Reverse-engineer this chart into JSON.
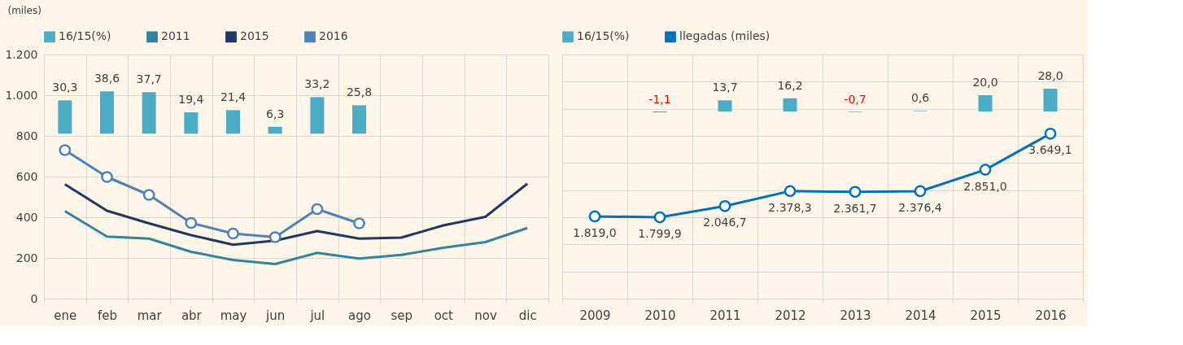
{
  "chart_data": [
    {
      "type": "line",
      "ylabel": "(miles)",
      "categories": [
        "ene",
        "feb",
        "mar",
        "abr",
        "may",
        "jun",
        "jul",
        "ago",
        "sep",
        "oct",
        "nov",
        "dic"
      ],
      "ylim": [
        0,
        1200
      ],
      "yticks": [
        0,
        200,
        400,
        600,
        800,
        {
          "value": 1000,
          "label": "1.000"
        },
        {
          "value": 1200,
          "label": "1.200"
        }
      ],
      "y2lim": [
        -150,
        72
      ],
      "grid": true,
      "legend": "top",
      "series": [
        {
          "name": "16/15(%)",
          "type": "bar",
          "axis": "y2",
          "color": "#4bacc6",
          "values": [
            30.3,
            38.6,
            37.7,
            19.4,
            21.4,
            6.3,
            33.2,
            25.8,
            null,
            null,
            null,
            null
          ],
          "value_labels": [
            "30,3",
            "38,6",
            "37,7",
            "19,4",
            "21,4",
            "6,3",
            "33,2",
            "25,8",
            null,
            null,
            null,
            null
          ]
        },
        {
          "name": "2011",
          "color": "#31859c",
          "values": [
            430,
            305,
            295,
            230,
            190,
            170,
            225,
            197,
            215,
            250,
            278,
            347
          ]
        },
        {
          "name": "2015",
          "color": "#1f3864",
          "values": [
            562,
            432,
            370,
            312,
            265,
            285,
            332,
            295,
            300,
            360,
            402,
            565
          ]
        },
        {
          "name": "2016",
          "color": "#4f81bd",
          "marker": "circle",
          "values": [
            730,
            598,
            510,
            372,
            320,
            302,
            440,
            370,
            null,
            null,
            null,
            null
          ]
        }
      ]
    },
    {
      "type": "line",
      "categories": [
        "2009",
        "2010",
        "2011",
        "2012",
        "2013",
        "2014",
        "2015",
        "2016"
      ],
      "ylim": [
        0,
        5400
      ],
      "yticks": [
        {
          "value": 0,
          "label": null
        },
        {
          "value": 600,
          "label": null
        },
        {
          "value": 1200,
          "label": null
        },
        {
          "value": 1800,
          "label": null
        },
        {
          "value": 2400,
          "label": null
        },
        {
          "value": 3000,
          "label": null
        },
        {
          "value": 3600,
          "label": null
        },
        {
          "value": 4200,
          "label": null
        },
        {
          "value": 4800,
          "label": null
        },
        {
          "value": 5400,
          "label": null
        }
      ],
      "y2lim": [
        -230,
        70
      ],
      "grid": true,
      "legend": "top",
      "tick_labels": "x",
      "series": [
        {
          "name": "16/15(%)",
          "type": "bar",
          "axis": "y2",
          "color": "#4bacc6",
          "values": [
            null,
            -1.1,
            13.7,
            16.2,
            -0.7,
            0.6,
            20.0,
            28.0
          ],
          "value_labels": [
            null,
            "-1,1",
            "13,7",
            "16,2",
            "-0,7",
            "0,6",
            "20,0",
            "28,0"
          ]
        },
        {
          "name": "llegadas (miles)",
          "color": "#0070c0",
          "marker": "circle",
          "values": [
            1819.0,
            1799.9,
            2046.7,
            2378.3,
            2361.7,
            2376.4,
            2851.0,
            3649.1
          ],
          "value_labels": [
            "1.819,0",
            "1.799,9",
            "2.046,7",
            "2.378,3",
            "2.361,7",
            "2.376,4",
            "2.851,0",
            "3.649,1"
          ]
        }
      ]
    }
  ]
}
